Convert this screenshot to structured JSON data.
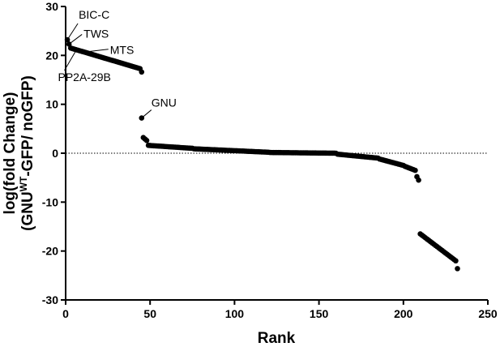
{
  "chart_data": {
    "type": "scatter",
    "xlabel": "Rank",
    "ylabel_line1": "log(fold Change)",
    "ylabel_line2_pre": "(GNU",
    "ylabel_line2_sup": "WT",
    "ylabel_line2_post": "-GFP/ noGFP)",
    "xlim": [
      0,
      250
    ],
    "ylim": [
      -30,
      30
    ],
    "xticks": [
      0,
      50,
      100,
      150,
      200,
      250
    ],
    "yticks": [
      -30,
      -20,
      -10,
      0,
      10,
      20,
      30
    ],
    "reference_line": {
      "y": 0,
      "style": "dotted"
    },
    "grid": false,
    "legend": "none",
    "point_color": "#000000",
    "annotations": [
      {
        "text": "BIC-C",
        "x": 1,
        "y": 23.2
      },
      {
        "text": "TWS",
        "x": 2,
        "y": 22.3
      },
      {
        "text": "MTS",
        "x": 9,
        "y": 20.6
      },
      {
        "text": "PP2A-29B",
        "x": 6,
        "y": 20.9
      },
      {
        "text": "GNU",
        "x": 45,
        "y": 7.2
      }
    ],
    "segments": [
      {
        "x_start": 1,
        "x_end": 1,
        "y_start": 23.2,
        "y_end": 23.2
      },
      {
        "x_start": 2,
        "x_end": 2,
        "y_start": 22.3,
        "y_end": 22.3
      },
      {
        "x_start": 3,
        "x_end": 44,
        "y_start": 21.5,
        "y_end": 17.3
      },
      {
        "x_start": 45,
        "x_end": 45,
        "y_start": 16.6,
        "y_end": 16.6
      },
      {
        "x_start": 45,
        "x_end": 45,
        "y_start": 7.2,
        "y_end": 7.2
      },
      {
        "x_start": 46,
        "x_end": 48,
        "y_start": 3.2,
        "y_end": 2.6
      },
      {
        "x_start": 49,
        "x_end": 75,
        "y_start": 1.6,
        "y_end": 1.0
      },
      {
        "x_start": 76,
        "x_end": 120,
        "y_start": 0.9,
        "y_end": 0.2
      },
      {
        "x_start": 121,
        "x_end": 160,
        "y_start": 0.15,
        "y_end": 0.0
      },
      {
        "x_start": 161,
        "x_end": 185,
        "y_start": -0.2,
        "y_end": -1.0
      },
      {
        "x_start": 186,
        "x_end": 200,
        "y_start": -1.2,
        "y_end": -2.5
      },
      {
        "x_start": 201,
        "x_end": 207,
        "y_start": -2.7,
        "y_end": -3.5
      },
      {
        "x_start": 208,
        "x_end": 209,
        "y_start": -4.8,
        "y_end": -5.5
      },
      {
        "x_start": 210,
        "x_end": 231,
        "y_start": -16.5,
        "y_end": -22.0
      },
      {
        "x_start": 232,
        "x_end": 232,
        "y_start": -23.6,
        "y_end": -23.6
      }
    ]
  }
}
